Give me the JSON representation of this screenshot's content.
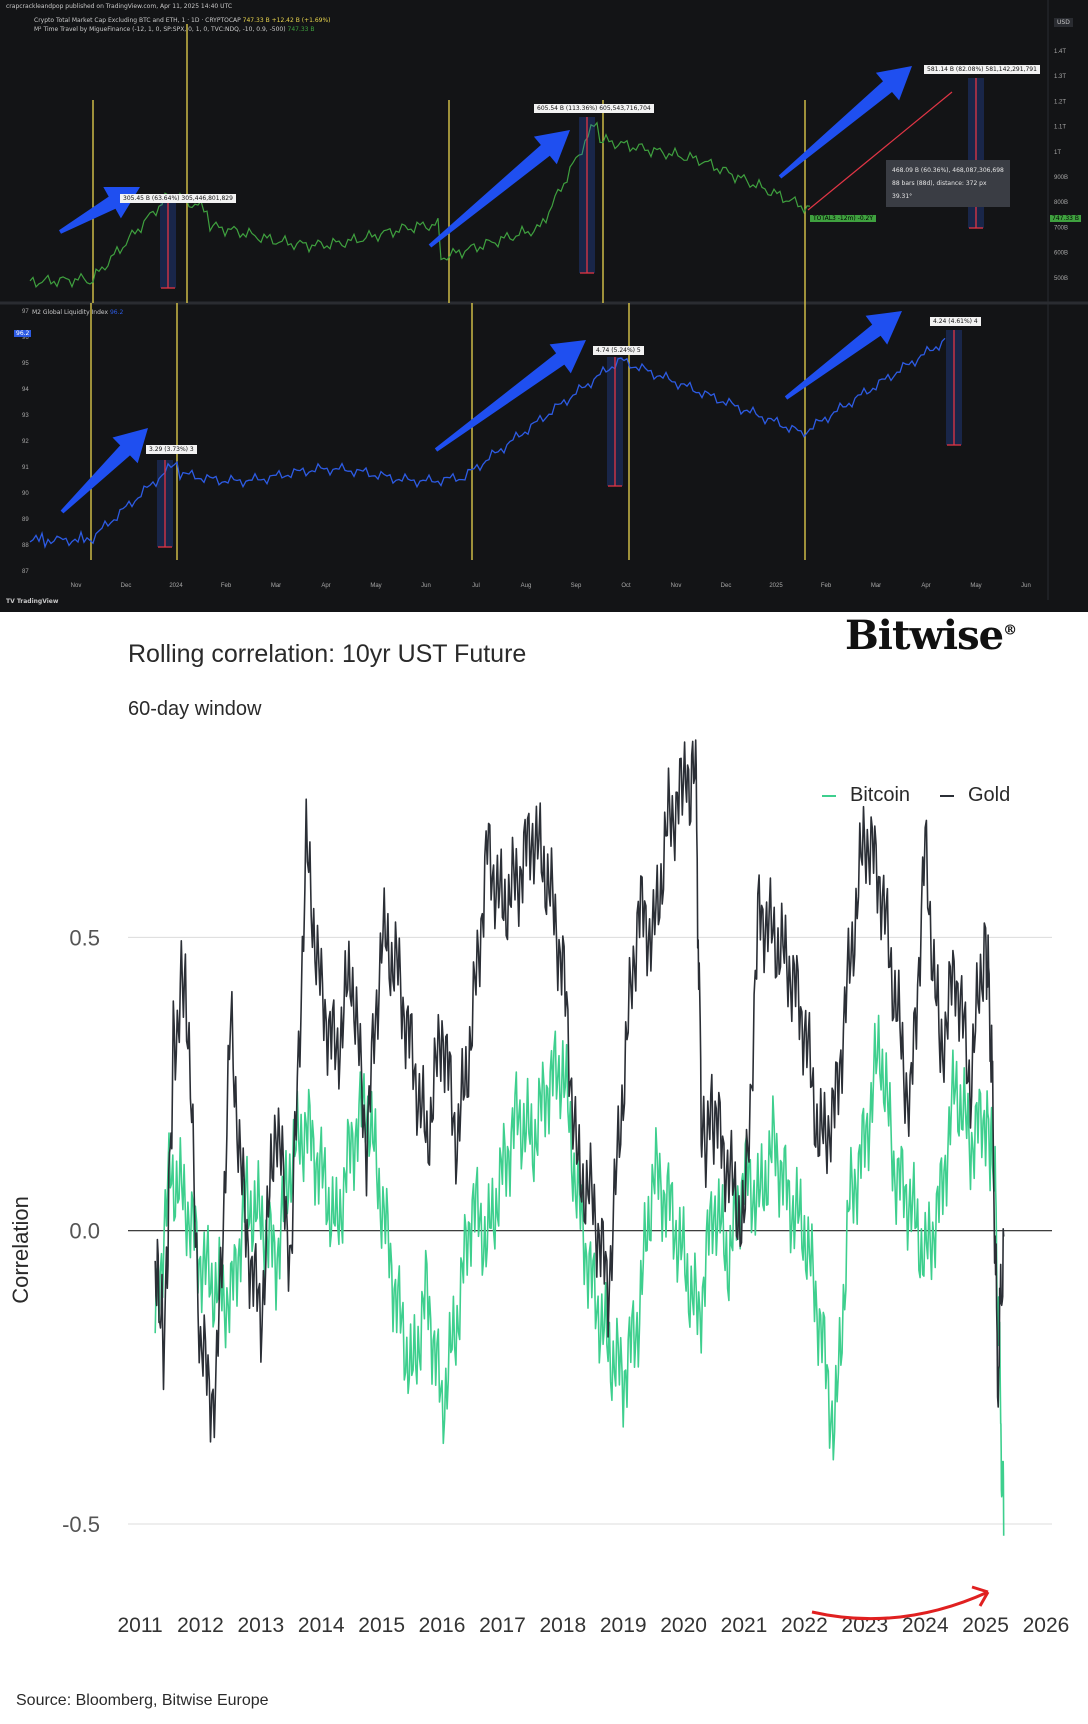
{
  "tradingview": {
    "header": "crapcrackleandpop published on TradingView.com, Apr 11, 2025 14:40 UTC",
    "series1_label": "Crypto Total Market Cap Excluding BTC and ETH, 1 · 1D · CRYPTOCAP",
    "series1_value": "747.33 B +12.42 B (+1.69%)",
    "series2_label": "M² Time Travel by MigueFinance (-12, 1, 0, SP:SPX, 0, 1, 0, TVC:NDQ, -10, 0.9, -500)",
    "series2_value": "747.33 B",
    "currency": "USD",
    "current_price_tag": "747.33 B",
    "total_tag": "TOTAL3 -12m) -0.2Y",
    "upper_axis_labels": [
      "1.4T",
      "1.3T",
      "1.2T",
      "1.1T",
      "1T",
      "900B",
      "800B",
      "700B",
      "600B",
      "500B"
    ],
    "upper_annotations": [
      "305.45 B (63.64%) 305,446,801,829",
      "605.54 B (113.36%) 605,543,716,704",
      "581.14 B (82.08%) 581,142,291,791"
    ],
    "info_box": [
      "468.09 B (60.36%), 468,087,306,698",
      "88 bars (88d), distance: 372 px",
      "39.31°"
    ],
    "lower_label": "M2 Global Liquidity Index",
    "lower_label_value": "96.2",
    "lower_axis_labels": [
      "97",
      "96",
      "95",
      "94",
      "93",
      "92",
      "91",
      "90",
      "89",
      "88",
      "87"
    ],
    "lower_annotations": [
      "3.29 (3.73%) 3",
      "4.74 (5.24%) 5",
      "4.24 (4.61%) 4"
    ],
    "x_axis_labels": [
      "Nov",
      "Dec",
      "2024",
      "Feb",
      "Mar",
      "Apr",
      "May",
      "Jun",
      "Jul",
      "Aug",
      "Sep",
      "Oct",
      "Nov",
      "Dec",
      "2025",
      "Feb",
      "Mar",
      "Apr",
      "May",
      "Jun"
    ],
    "logo_text": "TradingView",
    "colors": {
      "background": "#131416",
      "upper_line": "#3fa13f",
      "lower_line": "#2d5be3",
      "arrow": "#1f4ff0",
      "vline": "#e8d44d",
      "measure": "#e03545"
    }
  },
  "bitwise": {
    "brand": "Bitwise",
    "brand_mark": "®",
    "title": "Rolling correlation: 10yr UST Future",
    "subtitle": "60-day window",
    "source": "Source: Bloomberg, Bitwise Europe"
  },
  "chart_data": {
    "type": "line",
    "title": "Rolling correlation: 10yr UST Future",
    "subtitle": "60-day window",
    "ylabel": "Correlation",
    "xlabel": "",
    "ylim": [
      -0.65,
      0.85
    ],
    "yticks": [
      -0.5,
      0.0,
      0.5
    ],
    "ytick_labels": [
      "-0.5",
      "0.0",
      "0.5"
    ],
    "xlim": [
      2010.8,
      2026.1
    ],
    "xticks": [
      "2011",
      "2012",
      "2013",
      "2014",
      "2015",
      "2016",
      "2017",
      "2018",
      "2019",
      "2020",
      "2021",
      "2022",
      "2023",
      "2024",
      "2025",
      "2026"
    ],
    "grid": true,
    "legend_position": "top-right",
    "series": [
      {
        "name": "Bitcoin",
        "color": "#3ecf8e",
        "x": [
          2011.25,
          2011.5,
          2011.75,
          2012.0,
          2012.25,
          2012.5,
          2012.75,
          2013.0,
          2013.25,
          2013.5,
          2013.75,
          2014.0,
          2014.25,
          2014.5,
          2014.75,
          2015.0,
          2015.25,
          2015.5,
          2015.75,
          2016.0,
          2016.25,
          2016.5,
          2016.75,
          2017.0,
          2017.25,
          2017.5,
          2017.75,
          2018.0,
          2018.25,
          2018.5,
          2018.75,
          2019.0,
          2019.25,
          2019.5,
          2019.75,
          2020.0,
          2020.25,
          2020.5,
          2020.75,
          2021.0,
          2021.25,
          2021.5,
          2021.75,
          2022.0,
          2022.25,
          2022.5,
          2022.75,
          2023.0,
          2023.25,
          2023.5,
          2023.75,
          2024.0,
          2024.25,
          2024.5,
          2024.75,
          2025.0,
          2025.15,
          2025.25,
          2025.3
        ],
        "values": [
          -0.15,
          0.1,
          0.05,
          -0.05,
          -0.1,
          -0.12,
          0.05,
          0.02,
          -0.05,
          0.12,
          0.18,
          0.1,
          0.0,
          0.15,
          0.22,
          0.05,
          -0.12,
          -0.25,
          -0.1,
          -0.3,
          -0.15,
          0.05,
          -0.02,
          0.1,
          0.2,
          0.15,
          0.25,
          0.28,
          0.05,
          -0.1,
          -0.2,
          -0.25,
          -0.15,
          0.1,
          0.05,
          -0.05,
          -0.15,
          0.05,
          -0.05,
          0.1,
          0.05,
          0.15,
          0.05,
          0.0,
          -0.15,
          -0.35,
          0.05,
          0.15,
          0.32,
          0.1,
          0.05,
          -0.05,
          0.05,
          0.25,
          0.15,
          0.2,
          0.1,
          -0.3,
          -0.52
        ]
      },
      {
        "name": "Gold",
        "color": "#2b2f36",
        "x": [
          2011.25,
          2011.4,
          2011.55,
          2011.75,
          2012.0,
          2012.25,
          2012.5,
          2012.75,
          2013.0,
          2013.25,
          2013.5,
          2013.75,
          2014.0,
          2014.25,
          2014.5,
          2014.75,
          2015.0,
          2015.25,
          2015.5,
          2015.75,
          2016.0,
          2016.25,
          2016.5,
          2016.75,
          2017.0,
          2017.25,
          2017.5,
          2017.75,
          2018.0,
          2018.25,
          2018.5,
          2018.75,
          2019.0,
          2019.25,
          2019.5,
          2019.75,
          2020.0,
          2020.2,
          2020.3,
          2020.5,
          2020.75,
          2021.0,
          2021.25,
          2021.5,
          2021.75,
          2022.0,
          2022.25,
          2022.5,
          2022.75,
          2023.0,
          2023.25,
          2023.5,
          2023.75,
          2024.0,
          2024.25,
          2024.5,
          2024.75,
          2025.0,
          2025.1,
          2025.2,
          2025.3
        ],
        "values": [
          -0.05,
          -0.2,
          0.3,
          0.45,
          -0.2,
          -0.3,
          0.35,
          0.0,
          -0.15,
          0.2,
          -0.05,
          0.65,
          0.4,
          0.3,
          0.45,
          0.15,
          0.5,
          0.45,
          0.3,
          0.15,
          0.35,
          0.15,
          0.35,
          0.65,
          0.55,
          0.6,
          0.68,
          0.6,
          0.45,
          0.1,
          0.05,
          -0.1,
          0.25,
          0.55,
          0.5,
          0.7,
          0.75,
          0.78,
          0.15,
          0.2,
          0.1,
          0.0,
          0.55,
          0.5,
          0.45,
          0.35,
          0.15,
          0.2,
          0.45,
          0.68,
          0.6,
          0.4,
          0.2,
          0.65,
          0.3,
          0.45,
          0.25,
          0.52,
          0.3,
          -0.25,
          -0.01
        ]
      }
    ]
  }
}
